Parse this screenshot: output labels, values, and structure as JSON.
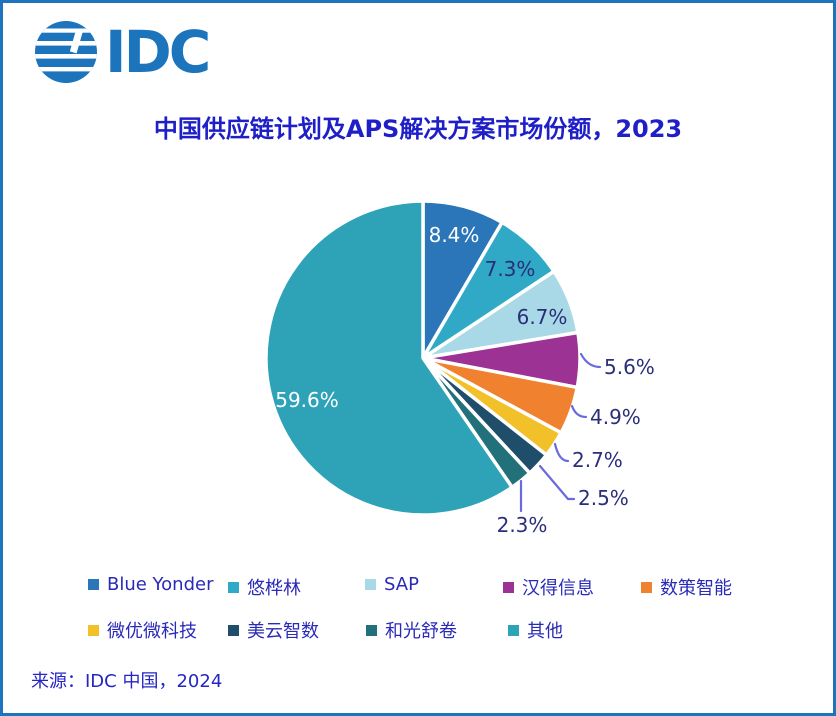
{
  "logo": {
    "text": "IDC",
    "icon": "striped-globe"
  },
  "header": {
    "title": "中国供应链计划及APS解决方案市场份额，2023"
  },
  "chart_data": {
    "type": "pie",
    "title": "中国供应链计划及APS解决方案市场份额，2023",
    "categories": [
      "Blue Yonder",
      "悠桦林",
      "SAP",
      "汉得信息",
      "数策智能",
      "微优微科技",
      "美云智数",
      "和光舒卷",
      "其他"
    ],
    "values": [
      8.4,
      7.3,
      6.7,
      5.6,
      4.9,
      2.7,
      2.5,
      2.3,
      59.6
    ],
    "labels": [
      "8.4%",
      "7.3%",
      "6.7%",
      "5.6%",
      "4.9%",
      "2.7%",
      "2.5%",
      "2.3%",
      "59.6%"
    ],
    "colors": [
      "#2a76b8",
      "#2fa9c5",
      "#a9d8e6",
      "#9c3394",
      "#f0812e",
      "#f2c029",
      "#1f4e6b",
      "#21707a",
      "#2ea3b8"
    ],
    "unit": "%",
    "start_angle": "12-oclock",
    "direction": "clockwise",
    "legend_position": "bottom"
  },
  "source": {
    "text": "来源：IDC 中国，2024"
  },
  "accent_colors": {
    "border_blue": "#1b74bc",
    "logo_blue": "#1b74bc",
    "title_text": "#1f1fc8",
    "legend_text": "#2a2ab9",
    "pct_label_dark": "#2a2f7a",
    "pct_label_light": "#ffffff",
    "leader_line": "#6a6adf",
    "slice_separator": "#ffffff"
  }
}
